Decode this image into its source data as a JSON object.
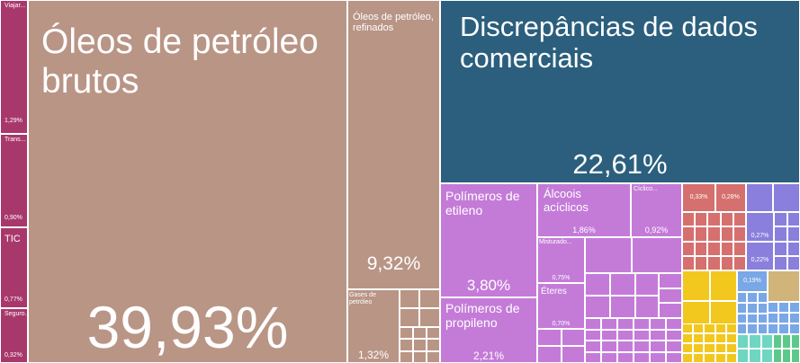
{
  "chart_data": {
    "type": "treemap",
    "unit": "%",
    "tiles": [
      {
        "label": "Viajar...",
        "value": "1,29%",
        "color": "#a8386c"
      },
      {
        "label": "Trans...",
        "value": "0,90%",
        "color": "#a8386c"
      },
      {
        "label": "TIC",
        "value": "0,77%",
        "color": "#a8386c"
      },
      {
        "label": "Seguro...",
        "value": "0,32%",
        "color": "#a8386c"
      },
      {
        "label": "Óleos de petróleo brutos",
        "value": "39,93%",
        "color": "#b99586"
      },
      {
        "label": "Óleos de petróleo, refinados",
        "value": "9,32%",
        "color": "#b99586"
      },
      {
        "label": "Gases de petróleo",
        "value": "1,32%",
        "color": "#b99586"
      },
      {
        "label": "Discrepâncias de dados comerciais",
        "value": "22,61%",
        "color": "#2b5f7d"
      },
      {
        "label": "Polímeros de etileno",
        "value": "3,80%",
        "color": "#c47bd8"
      },
      {
        "label": "Polímeros de propileno",
        "value": "2,21%",
        "color": "#c47bd8"
      },
      {
        "label": "Álcoois acíclicos",
        "value": "1,86%",
        "color": "#c47bd8"
      },
      {
        "label": "Cíclico...",
        "value": "0,92%",
        "color": "#c47bd8"
      },
      {
        "label": "Misturado...",
        "value": "0,75%",
        "color": "#c47bd8"
      },
      {
        "label": "Éteres",
        "value": "0,70%",
        "color": "#c47bd8"
      },
      {
        "label": "",
        "value": "0,33%",
        "color": "#d5706f"
      },
      {
        "label": "",
        "value": "0,28%",
        "color": "#d5706f"
      },
      {
        "label": "",
        "value": "0,27%",
        "color": "#8a7fdc"
      },
      {
        "label": "",
        "value": "0,22%",
        "color": "#8a7fdc"
      },
      {
        "label": "",
        "value": "0,19%",
        "color": "#7aa7e6"
      }
    ],
    "filler_colors": {
      "services": "#a8386c",
      "minerals": "#b99586",
      "chemicals": "#c47bd8",
      "plastics": "#d5706f",
      "machines": "#8a7fdc",
      "metals": "#f2c81e",
      "electronics": "#7aa7e6",
      "stone": "#d1b47a",
      "textiles": "#6fd6c2",
      "misc": "#5cc98a"
    }
  }
}
